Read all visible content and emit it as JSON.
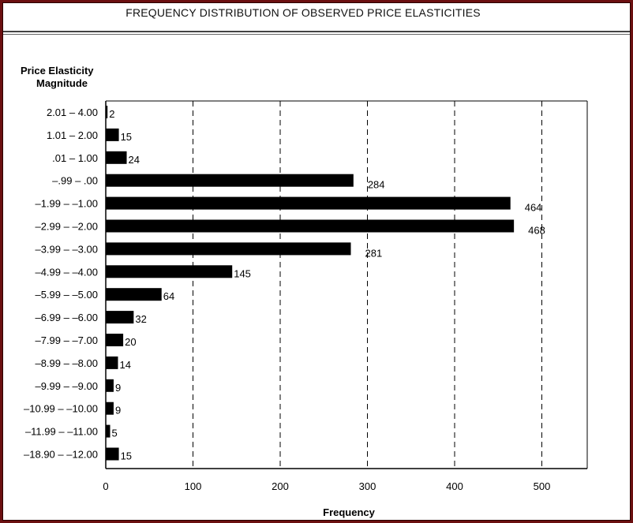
{
  "title": "FREQUENCY DISTRIBUTION OF OBSERVED PRICE ELASTICITIES",
  "chart_data": {
    "type": "bar",
    "orientation": "horizontal",
    "title": "FREQUENCY DISTRIBUTION OF OBSERVED PRICE ELASTICITIES",
    "ylabel": [
      "Price Elasticity",
      "Magnitude"
    ],
    "xlabel": "Frequency",
    "xlim": [
      0,
      550
    ],
    "xticks": [
      "0",
      "100",
      "200",
      "300",
      "400",
      "500"
    ],
    "grid": "vertical dashed",
    "categories": [
      "2.01 – 4.00",
      "1.01 – 2.00",
      ".01 – 1.00",
      "–.99 – .00",
      "–1.99 – –1.00",
      "–2.99 – –2.00",
      "–3.99 – –3.00",
      "–4.99 – –4.00",
      "–5.99 – –5.00",
      "–6.99 – –6.00",
      "–7.99 – –7.00",
      "–8.99 – –8.00",
      "–9.99 – –9.00",
      "–10.99 – –10.00",
      "–11.99 – –11.00",
      "–18.90 – –12.00"
    ],
    "values": [
      2,
      15,
      24,
      284,
      464,
      468,
      281,
      145,
      64,
      32,
      20,
      14,
      9,
      9,
      5,
      15
    ],
    "value_labels": [
      "2",
      "15",
      "24",
      "284",
      "464",
      "468",
      "281",
      "145",
      "64",
      "32",
      "20",
      "14",
      "9",
      "9",
      "5",
      "15"
    ],
    "bar_color": "#000000"
  }
}
